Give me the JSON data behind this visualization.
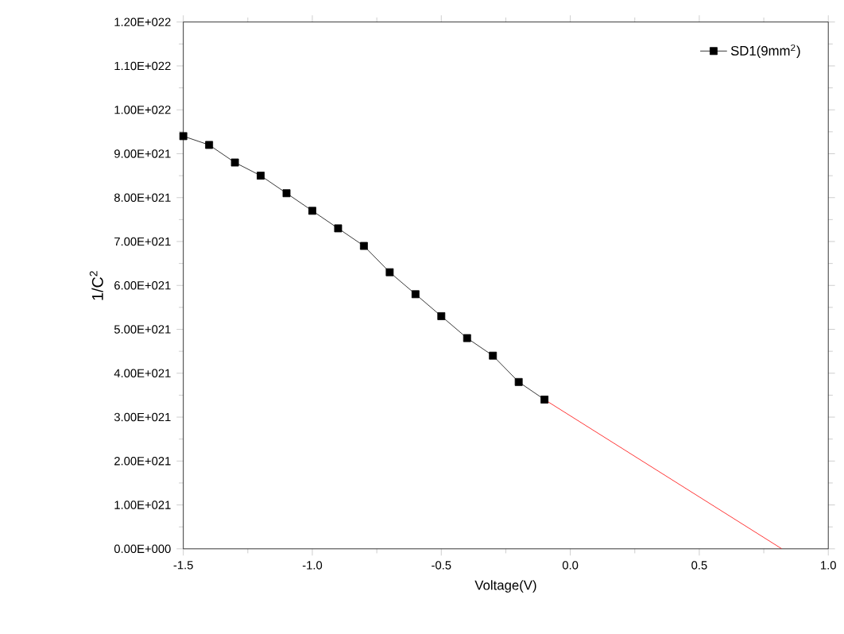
{
  "chart_data": {
    "type": "line",
    "xlabel": "Voltage(V)",
    "ylabel": "1/C$^{2}$",
    "xlim": [
      -1.5,
      1.0
    ],
    "xticks": [
      {
        "value": -1.5,
        "label": "-1.5"
      },
      {
        "value": -1.0,
        "label": "-1.0"
      },
      {
        "value": -0.5,
        "label": "-0.5"
      },
      {
        "value": 0.0,
        "label": "0.0"
      },
      {
        "value": 0.5,
        "label": "0.5"
      },
      {
        "value": 1.0,
        "label": "1.0"
      }
    ],
    "ylim": [
      0,
      1.2e+22
    ],
    "yticks": [
      {
        "value": 0,
        "label": "0.00E+000"
      },
      {
        "value": 1e+21,
        "label": "1.00E+021"
      },
      {
        "value": 2e+21,
        "label": "2.00E+021"
      },
      {
        "value": 3e+21,
        "label": "3.00E+021"
      },
      {
        "value": 4e+21,
        "label": "4.00E+021"
      },
      {
        "value": 5e+21,
        "label": "5.00E+021"
      },
      {
        "value": 6e+21,
        "label": "6.00E+021"
      },
      {
        "value": 7e+21,
        "label": "7.00E+021"
      },
      {
        "value": 8e+21,
        "label": "8.00E+021"
      },
      {
        "value": 9e+21,
        "label": "9.00E+021"
      },
      {
        "value": 1e+22,
        "label": "1.00E+022"
      },
      {
        "value": 1.1e+22,
        "label": "1.10E+022"
      },
      {
        "value": 1.2e+22,
        "label": "1.20E+022"
      }
    ],
    "legend": "top right",
    "grid": false,
    "series": [
      {
        "name": "SD1(9mm$^{2}$)",
        "color": "#000000",
        "marker": "square",
        "x": [
          -1.5,
          -1.4,
          -1.3,
          -1.2,
          -1.1,
          -1.0,
          -0.9,
          -0.8,
          -0.7,
          -0.6,
          -0.5,
          -0.4,
          -0.3,
          -0.2,
          -0.1
        ],
        "values": [
          9.4e+21,
          9.2e+21,
          8.8e+21,
          8.5e+21,
          8.1e+21,
          7.7e+21,
          7.3e+21,
          6.9e+21,
          6.3e+21,
          5.8e+21,
          5.3e+21,
          4.8e+21,
          4.4e+21,
          3.8e+21,
          3.4e+21
        ]
      },
      {
        "color": "#ff0000",
        "marker": "none",
        "x": [
          -0.1,
          0.82
        ],
        "values": [
          3.4e+21,
          0
        ]
      }
    ]
  }
}
